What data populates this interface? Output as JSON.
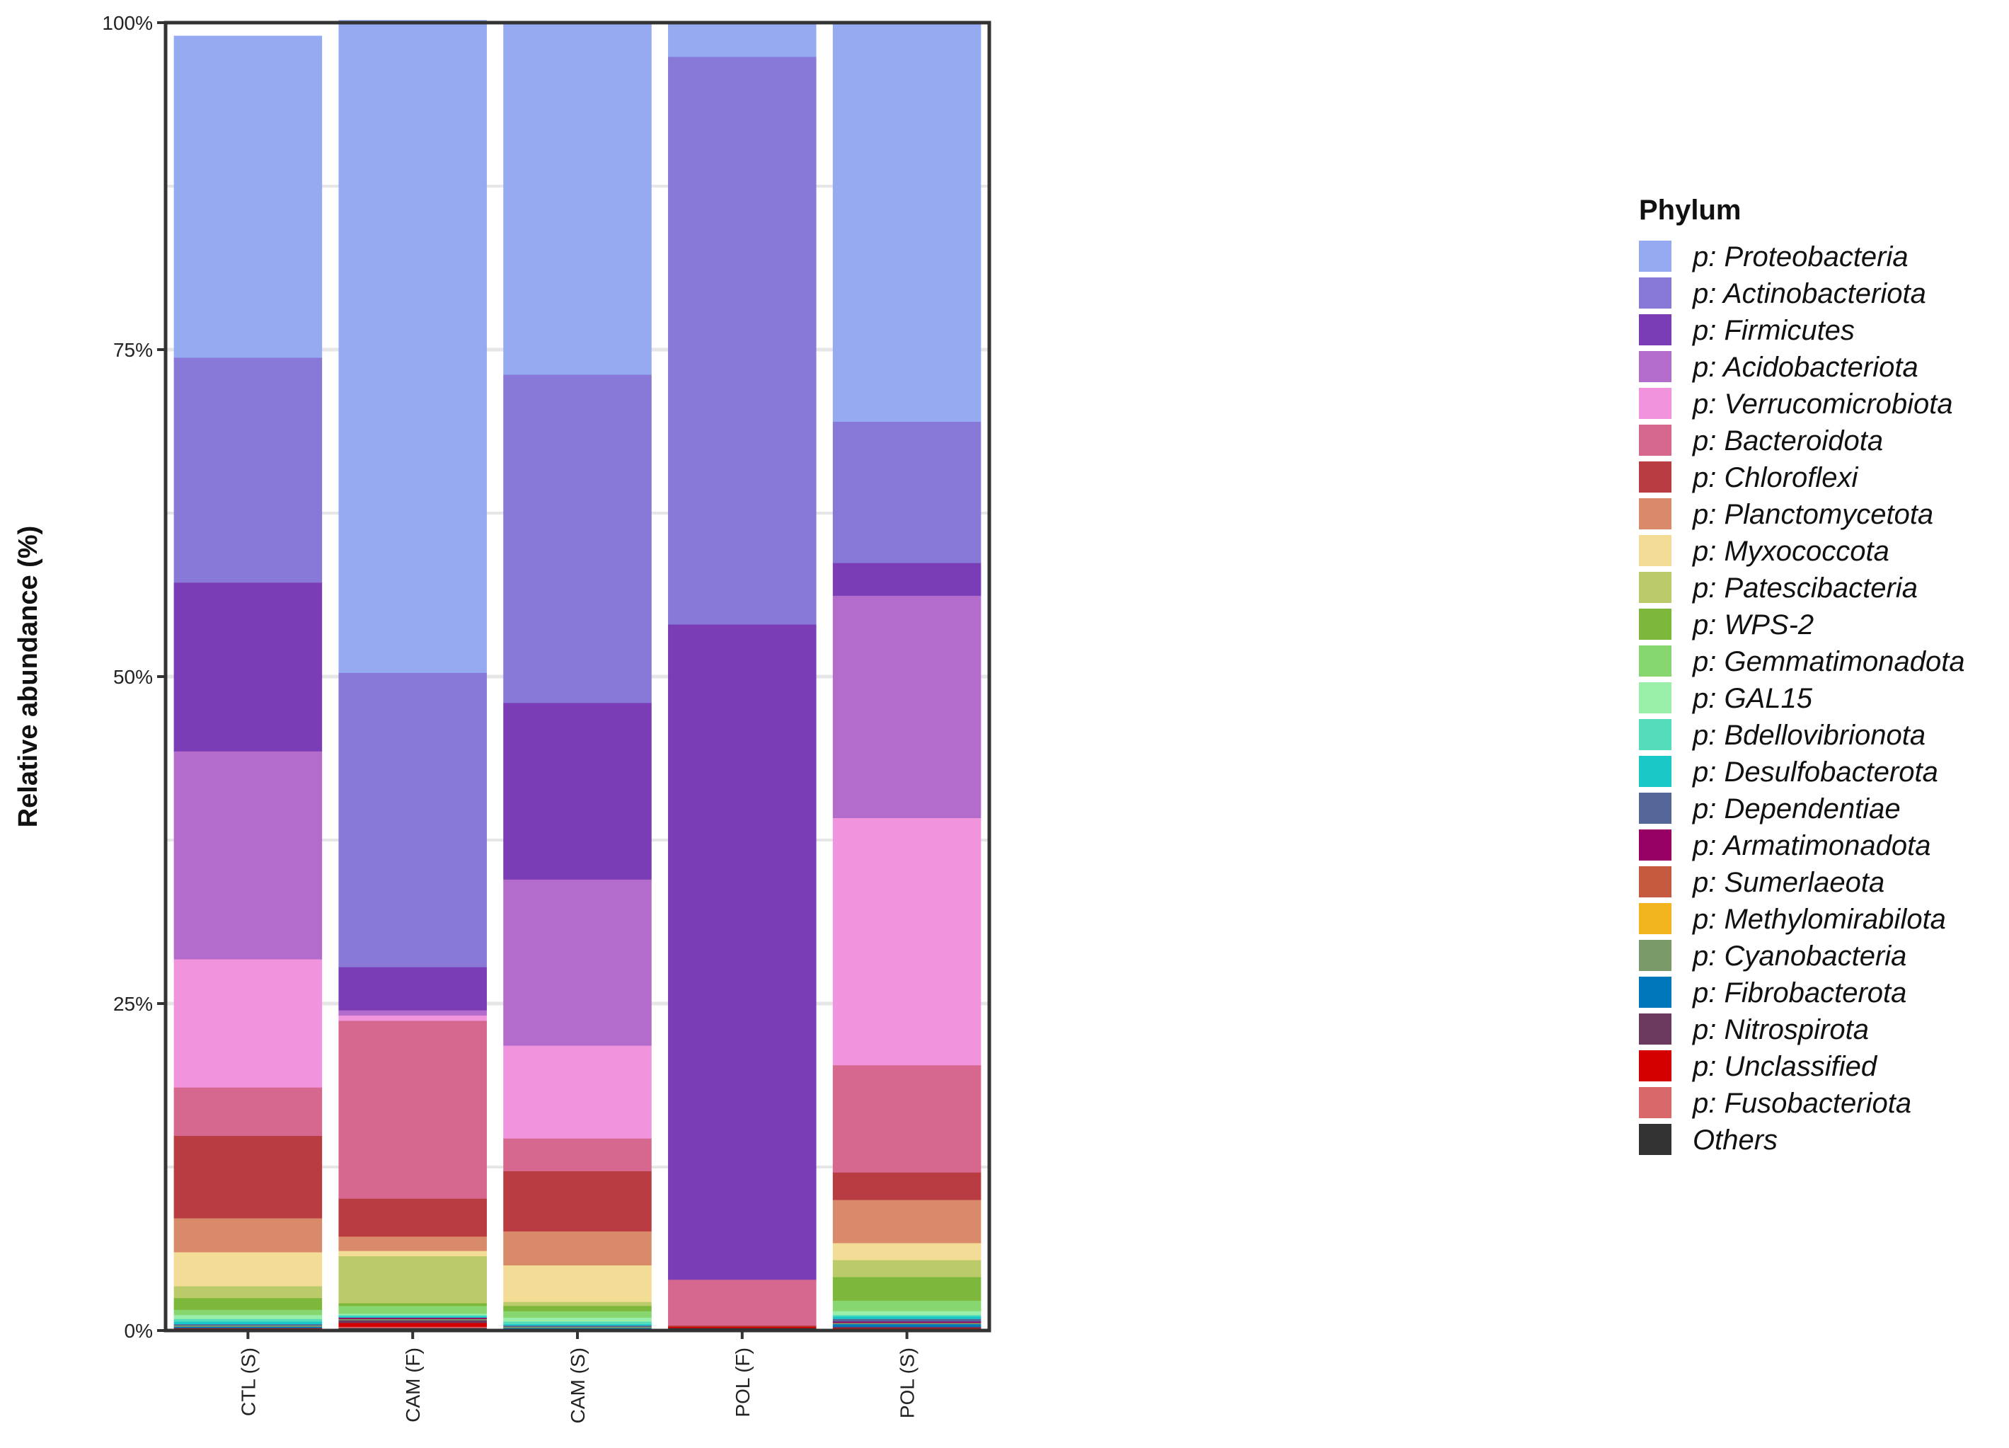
{
  "chart_data": {
    "type": "bar",
    "stacked": true,
    "title": "",
    "xlabel": "",
    "ylabel": "Relative abundance (%)",
    "ylim": [
      0,
      100
    ],
    "yticks": [
      "0%",
      "25%",
      "50%",
      "75%",
      "100%"
    ],
    "grid": true,
    "legend_position": "right",
    "legend_title": "Phylum",
    "categories": [
      "CTL (S)",
      "CAM (F)",
      "CAM (S)",
      "POL (F)",
      "POL (S)"
    ],
    "series": [
      {
        "name": "Others",
        "color": "#333333",
        "values": [
          0.1,
          0.2,
          0.1,
          0.2,
          0.1
        ]
      },
      {
        "name": "p: Fusobacteriota",
        "color": "#D9686A",
        "values": [
          0.0,
          0.1,
          0.0,
          0.0,
          0.0
        ]
      },
      {
        "name": "p: Unclassified",
        "color": "#D40000",
        "values": [
          0.1,
          0.3,
          0.0,
          0.1,
          0.1
        ]
      },
      {
        "name": "p: Nitrospirota",
        "color": "#6B3A5E",
        "values": [
          0.0,
          0.2,
          0.0,
          0.0,
          0.1
        ]
      },
      {
        "name": "p: Fibrobacterota",
        "color": "#0077BB",
        "values": [
          0.1,
          0.0,
          0.1,
          0.0,
          0.2
        ]
      },
      {
        "name": "p: Cyanobacteria",
        "color": "#7A9A6A",
        "values": [
          0.1,
          0.1,
          0.1,
          0.0,
          0.1
        ]
      },
      {
        "name": "p: Methylomirabilota",
        "color": "#F2B51D",
        "values": [
          0.0,
          0.0,
          0.0,
          0.0,
          0.0
        ]
      },
      {
        "name": "p: Sumerlaeota",
        "color": "#C55A40",
        "values": [
          0.0,
          0.0,
          0.0,
          0.0,
          0.0
        ]
      },
      {
        "name": "p: Armatimonadota",
        "color": "#990066",
        "values": [
          0.0,
          0.1,
          0.0,
          0.0,
          0.1
        ]
      },
      {
        "name": "p: Dependentiae",
        "color": "#556699",
        "values": [
          0.1,
          0.0,
          0.1,
          0.0,
          0.2
        ]
      },
      {
        "name": "p: Desulfobacterota",
        "color": "#1BC8C8",
        "values": [
          0.2,
          0.1,
          0.1,
          0.0,
          0.2
        ]
      },
      {
        "name": "p: Bdellovibrionota",
        "color": "#55DDBB",
        "values": [
          0.2,
          0.1,
          0.2,
          0.0,
          0.1
        ]
      },
      {
        "name": "p: GAL15",
        "color": "#99EEAA",
        "values": [
          0.3,
          0.1,
          0.3,
          0.0,
          0.3
        ]
      },
      {
        "name": "p: Gemmatimonadota",
        "color": "#88D66F",
        "values": [
          0.4,
          0.6,
          0.5,
          0.0,
          0.8
        ]
      },
      {
        "name": "p: WPS-2",
        "color": "#7DB83C",
        "values": [
          0.9,
          0.2,
          0.4,
          0.0,
          1.8
        ]
      },
      {
        "name": "p: Patescibacteria",
        "color": "#BCCB69",
        "values": [
          0.9,
          3.6,
          0.3,
          0.0,
          1.3
        ]
      },
      {
        "name": "p: Myxococcota",
        "color": "#F2DC96",
        "values": [
          2.6,
          0.4,
          2.8,
          0.0,
          1.3
        ]
      },
      {
        "name": "p: Planctomycetota",
        "color": "#D88A6A",
        "values": [
          2.6,
          1.1,
          2.6,
          0.0,
          3.3
        ]
      },
      {
        "name": "p: Chloroflexi",
        "color": "#B83C42",
        "values": [
          6.3,
          2.9,
          4.6,
          0.1,
          2.1
        ]
      },
      {
        "name": "p: Bacteroidota",
        "color": "#D6688F",
        "values": [
          3.7,
          13.6,
          2.5,
          3.5,
          8.2
        ]
      },
      {
        "name": "p: Verrucomicrobiota",
        "color": "#F294DD",
        "values": [
          9.8,
          0.4,
          7.1,
          0.0,
          18.9
        ]
      },
      {
        "name": "p: Acidobacteriota",
        "color": "#B46CCC",
        "values": [
          15.9,
          0.4,
          12.7,
          0.0,
          17.0
        ]
      },
      {
        "name": "p: Firmicutes",
        "color": "#7A3DB5",
        "values": [
          12.9,
          3.3,
          13.5,
          50.1,
          2.5
        ]
      },
      {
        "name": "p: Actinobacteriota",
        "color": "#8878D8",
        "values": [
          17.2,
          22.5,
          25.1,
          43.4,
          10.8
        ]
      },
      {
        "name": "p: Proteobacteria",
        "color": "#96AAF2",
        "values": [
          24.6,
          49.9,
          27.0,
          2.6,
          30.6
        ]
      }
    ]
  }
}
